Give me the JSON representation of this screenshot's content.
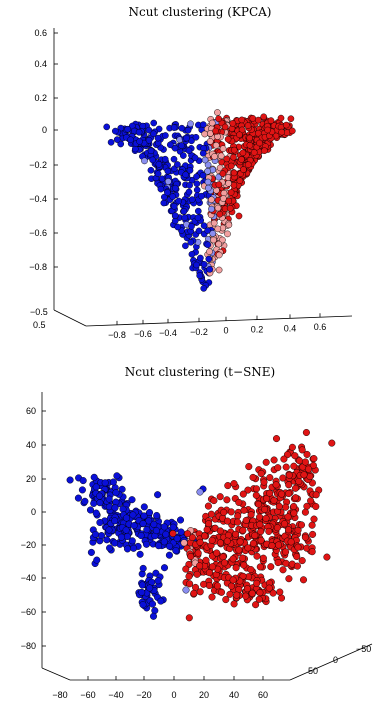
{
  "chart_data": [
    {
      "type": "scatter",
      "title": "Ncut clustering (KPCA)",
      "z_ticks": [
        "0.6",
        "0.4",
        "0.2",
        "0",
        "−0.2",
        "−0.4",
        "−0.6",
        "−0.8"
      ],
      "x_ticks": [
        "−0.8",
        "−0.6",
        "−0.4",
        "−0.2",
        "0",
        "0.2",
        "0.4",
        "0.6"
      ],
      "y_ticks": [
        "−0.5",
        "0.5"
      ],
      "zlim": [
        -0.9,
        0.6
      ],
      "xlim": [
        -0.9,
        0.6
      ],
      "ylim": [
        -0.5,
        0.5
      ],
      "grid": false,
      "colors": {
        "cluster_a": "#0a10d8",
        "cluster_a_light": "#8a8ef0",
        "cluster_b": "#e01414",
        "cluster_b_light": "#f2a0a0"
      },
      "clusters": [
        {
          "name": "",
          "color": "#0a10d8",
          "x_range": [
            -0.85,
            -0.3
          ],
          "z_range": [
            -0.78,
            0.0
          ],
          "count": 330
        },
        {
          "name": "",
          "color": "#e01414",
          "x_range": [
            -0.3,
            0.3
          ],
          "z_range": [
            -0.82,
            0.0
          ],
          "count": 470
        }
      ]
    },
    {
      "type": "scatter",
      "title": "Ncut clustering (t−SNE)",
      "z_ticks": [
        "60",
        "40",
        "20",
        "0",
        "−20",
        "−40",
        "−60",
        "−80"
      ],
      "x_ticks": [
        "−80",
        "−60",
        "−40",
        "−20",
        "0",
        "20",
        "40",
        "60"
      ],
      "y_ticks": [
        "50",
        "0",
        "−50"
      ],
      "zlim": [
        -85,
        70
      ],
      "xlim": [
        -80,
        70
      ],
      "ylim": [
        -50,
        50
      ],
      "grid": false,
      "colors": {
        "cluster_a": "#0a10d8",
        "cluster_a_light": "#8a8ef0",
        "cluster_b": "#e01414",
        "cluster_b_light": "#f2a0a0"
      },
      "clusters": [
        {
          "name": "",
          "color": "#0a10d8",
          "x_range": [
            -80,
            -20
          ],
          "z_range": [
            -40,
            35
          ],
          "count": 320
        },
        {
          "name": "",
          "color": "#e01414",
          "x_range": [
            -20,
            60
          ],
          "z_range": [
            -40,
            55
          ],
          "count": 520
        }
      ]
    }
  ]
}
